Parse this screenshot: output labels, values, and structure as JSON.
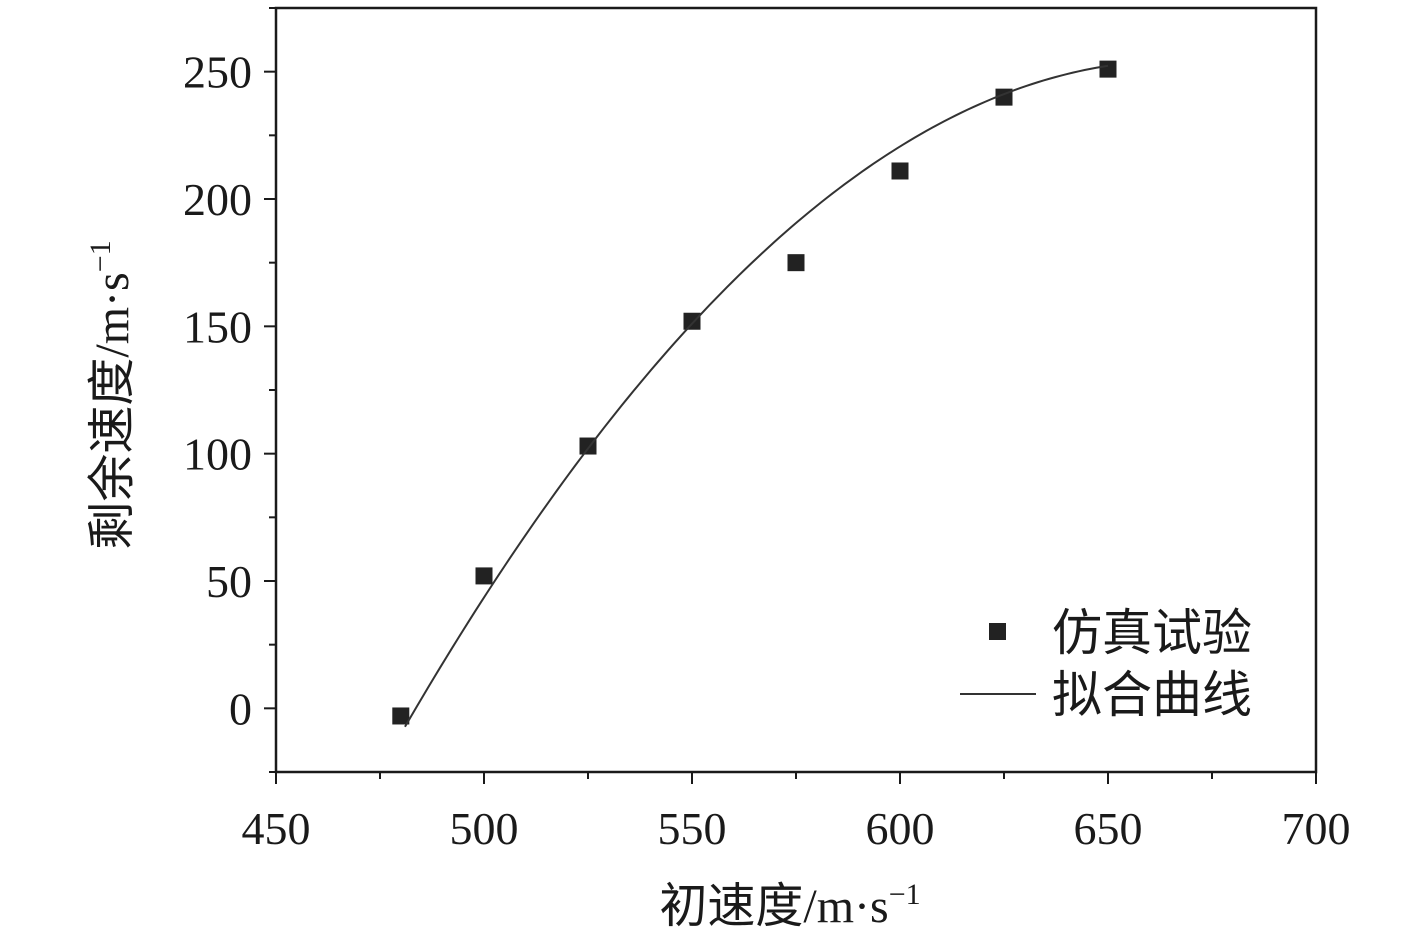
{
  "chart_data": {
    "type": "scatter",
    "xlabel": "初速度/m·s",
    "xlabel_sup": "−1",
    "ylabel": "剩余速度/m·s",
    "ylabel_sup": "−1",
    "xlim": [
      450,
      700
    ],
    "ylim": [
      -25,
      275
    ],
    "x_ticks": [
      450,
      500,
      550,
      600,
      650,
      700
    ],
    "y_ticks": [
      0,
      50,
      100,
      150,
      200,
      250
    ],
    "x_minor_step": 25,
    "y_minor_step": 25,
    "grid": false,
    "legend_position": "bottom-right",
    "series": [
      {
        "name": "仿真试验",
        "kind": "scatter",
        "marker": "square",
        "color": "#222222",
        "x": [
          480,
          500,
          525,
          550,
          575,
          600,
          625,
          650
        ],
        "y": [
          -3,
          52,
          103,
          152,
          175,
          211,
          240,
          251
        ]
      },
      {
        "name": "拟合曲线",
        "kind": "line",
        "color": "#333333",
        "fit": "quadratic",
        "x": [
          481,
          500,
          525,
          550,
          575,
          600,
          625,
          650
        ],
        "y": [
          -10,
          44,
          106,
          154,
          188,
          217,
          240,
          255
        ]
      }
    ]
  }
}
